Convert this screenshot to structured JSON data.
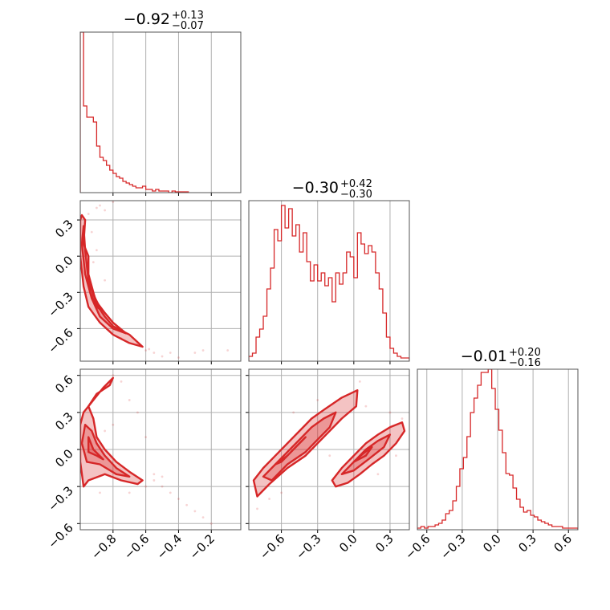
{
  "figure": {
    "line_color": "#d62728",
    "parameters": 3
  },
  "chart_data": [
    {
      "type": "histogram",
      "panel": "p0_hist",
      "title": {
        "median": "−0.92",
        "plus": "+0.13",
        "minus": "−0.07"
      },
      "xlim": [
        -1.0,
        -0.02
      ],
      "ylim": [
        0,
        1
      ],
      "x_ticks": [
        -0.8,
        -0.6,
        -0.4,
        -0.2
      ],
      "x_tick_labels": [],
      "bin_edges": [
        -1.0,
        -0.98,
        -0.96,
        -0.94,
        -0.92,
        -0.9,
        -0.88,
        -0.86,
        -0.84,
        -0.82,
        -0.8,
        -0.78,
        -0.76,
        -0.74,
        -0.72,
        -0.7,
        -0.68,
        -0.66,
        -0.64,
        -0.62,
        -0.6,
        -0.58,
        -0.56,
        -0.54,
        -0.52,
        -0.5,
        -0.48,
        -0.46,
        -0.44,
        -0.42,
        -0.4,
        -0.38,
        -0.36,
        -0.34
      ],
      "counts": [
        1.0,
        0.54,
        0.47,
        0.47,
        0.44,
        0.29,
        0.22,
        0.2,
        0.17,
        0.14,
        0.12,
        0.1,
        0.09,
        0.07,
        0.06,
        0.05,
        0.04,
        0.03,
        0.03,
        0.04,
        0.02,
        0.02,
        0.01,
        0.02,
        0.01,
        0.01,
        0.01,
        0.0,
        0.01,
        0.005,
        0.005,
        0.005,
        0.005
      ]
    },
    {
      "type": "histogram",
      "panel": "p1_hist",
      "title": {
        "median": "−0.30",
        "plus": "+0.42",
        "minus": "−0.30"
      },
      "xlim": [
        -0.87,
        0.46
      ],
      "ylim": [
        0,
        1
      ],
      "x_ticks": [
        -0.6,
        -0.3,
        0.0,
        0.3
      ],
      "x_tick_labels": [],
      "bin_edges": [
        -0.87,
        -0.84,
        -0.81,
        -0.78,
        -0.75,
        -0.72,
        -0.69,
        -0.66,
        -0.63,
        -0.6,
        -0.57,
        -0.54,
        -0.51,
        -0.48,
        -0.45,
        -0.42,
        -0.39,
        -0.36,
        -0.33,
        -0.3,
        -0.27,
        -0.24,
        -0.21,
        -0.18,
        -0.15,
        -0.12,
        -0.09,
        -0.06,
        -0.03,
        0.0,
        0.03,
        0.06,
        0.09,
        0.12,
        0.15,
        0.18,
        0.21,
        0.24,
        0.27,
        0.3,
        0.33,
        0.36,
        0.39,
        0.42,
        0.46
      ],
      "counts": [
        0.03,
        0.05,
        0.15,
        0.2,
        0.28,
        0.45,
        0.58,
        0.82,
        0.75,
        0.97,
        0.83,
        0.95,
        0.78,
        0.85,
        0.68,
        0.8,
        0.62,
        0.5,
        0.6,
        0.5,
        0.55,
        0.47,
        0.52,
        0.37,
        0.55,
        0.48,
        0.55,
        0.68,
        0.65,
        0.52,
        0.8,
        0.73,
        0.67,
        0.72,
        0.68,
        0.55,
        0.45,
        0.3,
        0.15,
        0.08,
        0.05,
        0.03,
        0.02,
        0.02
      ]
    },
    {
      "type": "histogram",
      "panel": "p2_hist",
      "title": {
        "median": "−0.01",
        "plus": "+0.20",
        "minus": "−0.16"
      },
      "xlim": [
        -0.68,
        0.68
      ],
      "ylim": [
        0,
        1
      ],
      "x_ticks": [
        -0.6,
        -0.3,
        0.0,
        0.3,
        0.6
      ],
      "x_tick_labels": [
        "−0.6",
        "−0.3",
        "0.0",
        "0.3",
        "0.6"
      ],
      "bin_edges": [
        -0.68,
        -0.65,
        -0.62,
        -0.59,
        -0.56,
        -0.53,
        -0.5,
        -0.47,
        -0.44,
        -0.41,
        -0.38,
        -0.35,
        -0.32,
        -0.29,
        -0.26,
        -0.23,
        -0.2,
        -0.17,
        -0.14,
        -0.11,
        -0.08,
        -0.05,
        -0.02,
        0.01,
        0.04,
        0.07,
        0.1,
        0.13,
        0.16,
        0.19,
        0.22,
        0.25,
        0.28,
        0.31,
        0.34,
        0.37,
        0.4,
        0.43,
        0.46,
        0.49,
        0.52,
        0.55,
        0.58,
        0.61,
        0.64,
        0.68
      ],
      "counts": [
        0.01,
        0.02,
        0.01,
        0.02,
        0.02,
        0.03,
        0.04,
        0.06,
        0.1,
        0.12,
        0.18,
        0.27,
        0.38,
        0.45,
        0.58,
        0.73,
        0.82,
        0.9,
        0.98,
        0.98,
        1.0,
        0.88,
        0.75,
        0.62,
        0.48,
        0.35,
        0.34,
        0.26,
        0.19,
        0.14,
        0.11,
        0.12,
        0.09,
        0.08,
        0.06,
        0.05,
        0.04,
        0.03,
        0.02,
        0.02,
        0.02,
        0.01,
        0.01,
        0.01,
        0.01
      ]
    },
    {
      "type": "contour",
      "panel": "p0_vs_p1",
      "xlim": [
        -1.0,
        -0.02
      ],
      "ylim": [
        -0.87,
        0.46
      ],
      "x_ticks": [
        -0.8,
        -0.6,
        -0.4,
        -0.2
      ],
      "x_tick_labels": [],
      "y_ticks": [
        0.3,
        0.0,
        -0.3,
        -0.6
      ],
      "y_tick_labels": [
        "0.3",
        "0.0",
        "−0.3",
        "−0.6"
      ],
      "contours": [
        [
          [
            -0.99,
            0.34
          ],
          [
            -0.97,
            0.3
          ],
          [
            -0.98,
            0.1
          ],
          [
            -0.95,
            0.0
          ],
          [
            -0.95,
            -0.15
          ],
          [
            -0.93,
            -0.25
          ],
          [
            -0.9,
            -0.4
          ],
          [
            -0.85,
            -0.5
          ],
          [
            -0.8,
            -0.58
          ],
          [
            -0.7,
            -0.65
          ],
          [
            -0.62,
            -0.75
          ],
          [
            -0.7,
            -0.72
          ],
          [
            -0.8,
            -0.65
          ],
          [
            -0.88,
            -0.55
          ],
          [
            -0.95,
            -0.42
          ],
          [
            -0.98,
            -0.25
          ],
          [
            -1.0,
            0.0
          ],
          [
            -1.0,
            0.3
          ]
        ],
        [
          [
            -0.98,
            0.25
          ],
          [
            -0.97,
            0.05
          ],
          [
            -0.95,
            -0.2
          ],
          [
            -0.9,
            -0.38
          ],
          [
            -0.85,
            -0.47
          ],
          [
            -0.8,
            -0.55
          ],
          [
            -0.72,
            -0.64
          ],
          [
            -0.8,
            -0.6
          ],
          [
            -0.88,
            -0.5
          ],
          [
            -0.93,
            -0.35
          ],
          [
            -0.97,
            -0.15
          ],
          [
            -0.99,
            0.1
          ]
        ],
        [
          [
            -0.95,
            -0.2
          ],
          [
            -0.92,
            -0.32
          ],
          [
            -0.87,
            -0.45
          ],
          [
            -0.9,
            -0.42
          ],
          [
            -0.94,
            -0.3
          ]
        ]
      ],
      "scatter": [
        [
          -0.9,
          0.4
        ],
        [
          -0.88,
          0.42
        ],
        [
          -0.85,
          0.38
        ],
        [
          -0.8,
          0.45
        ],
        [
          -0.93,
          0.2
        ],
        [
          -0.9,
          0.05
        ],
        [
          -0.92,
          -0.05
        ],
        [
          -0.85,
          -0.2
        ],
        [
          -0.6,
          -0.78
        ],
        [
          -0.55,
          -0.8
        ],
        [
          -0.5,
          -0.83
        ],
        [
          -0.45,
          -0.8
        ],
        [
          -0.4,
          -0.84
        ],
        [
          -0.3,
          -0.8
        ],
        [
          -0.25,
          -0.78
        ],
        [
          -0.1,
          -0.78
        ],
        [
          -0.65,
          -0.72
        ],
        [
          -0.58,
          -0.77
        ],
        [
          -0.75,
          -0.68
        ],
        [
          -0.95,
          0.35
        ]
      ]
    },
    {
      "type": "contour",
      "panel": "p0_vs_p2",
      "xlim": [
        -1.0,
        -0.02
      ],
      "ylim": [
        -0.65,
        0.65
      ],
      "x_ticks": [
        -0.8,
        -0.6,
        -0.4,
        -0.2
      ],
      "x_tick_labels": [
        "−0.8",
        "−0.6",
        "−0.4",
        "−0.2"
      ],
      "y_ticks": [
        0.6,
        0.3,
        0.0,
        -0.3,
        -0.6
      ],
      "y_tick_labels": [
        "0.6",
        "0.3",
        "0.0",
        "−0.3",
        "−0.6"
      ],
      "contours": [
        [
          [
            -0.98,
            0.3
          ],
          [
            -0.95,
            0.35
          ],
          [
            -0.92,
            0.25
          ],
          [
            -0.9,
            0.1
          ],
          [
            -0.85,
            0.0
          ],
          [
            -0.78,
            -0.1
          ],
          [
            -0.7,
            -0.18
          ],
          [
            -0.62,
            -0.25
          ],
          [
            -0.65,
            -0.28
          ],
          [
            -0.75,
            -0.25
          ],
          [
            -0.85,
            -0.2
          ],
          [
            -0.95,
            -0.25
          ],
          [
            -0.98,
            -0.3
          ],
          [
            -1.0,
            -0.1
          ],
          [
            -1.0,
            0.2
          ]
        ],
        [
          [
            -0.97,
            0.2
          ],
          [
            -0.93,
            0.15
          ],
          [
            -0.9,
            0.05
          ],
          [
            -0.85,
            -0.05
          ],
          [
            -0.78,
            -0.15
          ],
          [
            -0.7,
            -0.22
          ],
          [
            -0.78,
            -0.2
          ],
          [
            -0.88,
            -0.12
          ],
          [
            -0.96,
            -0.1
          ],
          [
            -0.99,
            0.05
          ]
        ],
        [
          [
            -0.95,
            0.1
          ],
          [
            -0.92,
            0.0
          ],
          [
            -0.86,
            -0.08
          ],
          [
            -0.9,
            -0.05
          ],
          [
            -0.95,
            -0.02
          ]
        ],
        [
          [
            -0.95,
            0.35
          ],
          [
            -0.9,
            0.45
          ],
          [
            -0.82,
            0.52
          ],
          [
            -0.8,
            0.58
          ],
          [
            -0.86,
            0.5
          ],
          [
            -0.92,
            0.4
          ]
        ]
      ],
      "scatter": [
        [
          -0.8,
          0.6
        ],
        [
          -0.75,
          0.55
        ],
        [
          -0.7,
          0.4
        ],
        [
          -0.65,
          0.3
        ],
        [
          -0.6,
          0.1
        ],
        [
          -0.55,
          -0.2
        ],
        [
          -0.5,
          -0.3
        ],
        [
          -0.45,
          -0.35
        ],
        [
          -0.4,
          -0.4
        ],
        [
          -0.35,
          -0.45
        ],
        [
          -0.3,
          -0.5
        ],
        [
          -0.25,
          -0.55
        ],
        [
          -0.2,
          -0.6
        ],
        [
          -0.6,
          -0.3
        ],
        [
          -0.7,
          -0.35
        ],
        [
          -0.55,
          -0.25
        ],
        [
          -0.5,
          -0.22
        ],
        [
          -0.85,
          0.15
        ],
        [
          -0.8,
          0.2
        ],
        [
          -0.88,
          -0.35
        ]
      ]
    },
    {
      "type": "contour",
      "panel": "p1_vs_p2",
      "xlim": [
        -0.87,
        0.46
      ],
      "ylim": [
        -0.65,
        0.65
      ],
      "x_ticks": [
        -0.6,
        -0.3,
        0.0,
        0.3
      ],
      "x_tick_labels": [
        "−0.6",
        "−0.3",
        "0.0",
        "0.3"
      ],
      "y_ticks": [
        0.6,
        0.3,
        0.0,
        -0.3,
        -0.6
      ],
      "y_tick_labels": [],
      "contours": [
        [
          [
            -0.83,
            -0.25
          ],
          [
            -0.75,
            -0.15
          ],
          [
            -0.65,
            -0.05
          ],
          [
            -0.55,
            0.05
          ],
          [
            -0.45,
            0.15
          ],
          [
            -0.35,
            0.25
          ],
          [
            -0.25,
            0.32
          ],
          [
            -0.1,
            0.42
          ],
          [
            0.03,
            0.48
          ],
          [
            0.02,
            0.35
          ],
          [
            -0.1,
            0.25
          ],
          [
            -0.2,
            0.15
          ],
          [
            -0.3,
            0.05
          ],
          [
            -0.4,
            -0.05
          ],
          [
            -0.55,
            -0.15
          ],
          [
            -0.7,
            -0.28
          ],
          [
            -0.8,
            -0.38
          ]
        ],
        [
          [
            -0.75,
            -0.22
          ],
          [
            -0.65,
            -0.12
          ],
          [
            -0.55,
            -0.02
          ],
          [
            -0.45,
            0.08
          ],
          [
            -0.35,
            0.18
          ],
          [
            -0.25,
            0.25
          ],
          [
            -0.15,
            0.3
          ],
          [
            -0.2,
            0.18
          ],
          [
            -0.3,
            0.08
          ],
          [
            -0.4,
            -0.02
          ],
          [
            -0.55,
            -0.12
          ],
          [
            -0.68,
            -0.25
          ]
        ],
        [
          [
            -0.65,
            -0.12
          ],
          [
            -0.55,
            -0.05
          ],
          [
            -0.45,
            0.05
          ],
          [
            -0.4,
            0.1
          ],
          [
            -0.5,
            0.0
          ],
          [
            -0.6,
            -0.1
          ]
        ],
        [
          [
            -0.18,
            -0.25
          ],
          [
            -0.1,
            -0.15
          ],
          [
            0.0,
            -0.05
          ],
          [
            0.1,
            0.05
          ],
          [
            0.2,
            0.12
          ],
          [
            0.3,
            0.18
          ],
          [
            0.4,
            0.22
          ],
          [
            0.42,
            0.15
          ],
          [
            0.35,
            0.05
          ],
          [
            0.25,
            -0.05
          ],
          [
            0.15,
            -0.12
          ],
          [
            0.05,
            -0.2
          ],
          [
            -0.05,
            -0.27
          ],
          [
            -0.15,
            -0.3
          ]
        ],
        [
          [
            -0.1,
            -0.2
          ],
          [
            0.0,
            -0.1
          ],
          [
            0.1,
            0.0
          ],
          [
            0.2,
            0.07
          ],
          [
            0.3,
            0.12
          ],
          [
            0.25,
            0.02
          ],
          [
            0.12,
            -0.08
          ],
          [
            0.0,
            -0.17
          ]
        ],
        [
          [
            0.0,
            -0.1
          ],
          [
            0.08,
            -0.03
          ],
          [
            0.15,
            0.02
          ],
          [
            0.1,
            -0.05
          ]
        ]
      ],
      "scatter": [
        [
          -0.8,
          -0.48
        ],
        [
          0.05,
          0.55
        ],
        [
          -0.5,
          0.3
        ],
        [
          -0.3,
          0.4
        ],
        [
          0.2,
          -0.2
        ],
        [
          0.3,
          0.3
        ],
        [
          0.4,
          0.25
        ],
        [
          -0.6,
          -0.35
        ],
        [
          -0.7,
          -0.4
        ],
        [
          0.1,
          0.35
        ],
        [
          0.35,
          -0.05
        ],
        [
          -0.2,
          -0.05
        ]
      ]
    }
  ]
}
